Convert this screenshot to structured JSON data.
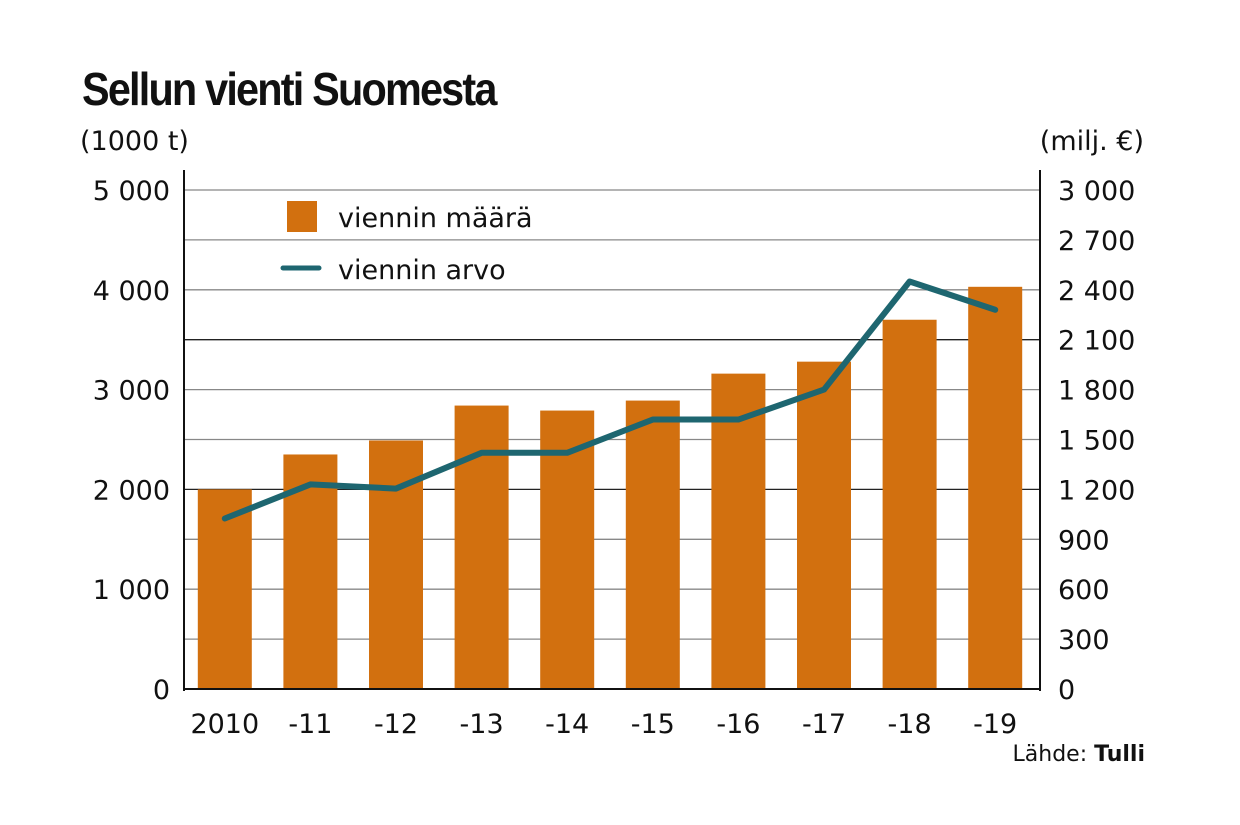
{
  "chart_data": {
    "type": "bar+line",
    "title": "Sellun vienti Suomesta",
    "ylabel_left": "(1000 t)",
    "ylabel_right": "(milj. €)",
    "categories": [
      "2010",
      "-11",
      "-12",
      "-13",
      "-14",
      "-15",
      "-16",
      "-17",
      "-18",
      "-19"
    ],
    "series": [
      {
        "name": "viennin määrä",
        "type": "bar",
        "axis": "left",
        "color": "#d2700f",
        "values": [
          2000,
          2350,
          2490,
          2840,
          2790,
          2890,
          3160,
          3280,
          3700,
          4030
        ]
      },
      {
        "name": "viennin arvo",
        "type": "line",
        "axis": "right",
        "color": "#1e6670",
        "values": [
          1025,
          1230,
          1205,
          1420,
          1420,
          1620,
          1620,
          1800,
          2450,
          2280
        ]
      }
    ],
    "left_axis": {
      "ylim": [
        0,
        5000
      ],
      "ticks": [
        0,
        1000,
        2000,
        3000,
        4000,
        5000
      ],
      "tick_labels": [
        "0",
        "1 000",
        "2 000",
        "3 000",
        "4 000",
        "5 000"
      ]
    },
    "right_axis": {
      "ylim": [
        0,
        3000
      ],
      "ticks": [
        0,
        300,
        600,
        900,
        1200,
        1500,
        1800,
        2100,
        2400,
        2700,
        3000
      ],
      "tick_labels": [
        "0",
        "300",
        "600",
        "900",
        "1 200",
        "1 500",
        "1 800",
        "2 100",
        "2 400",
        "2 700",
        "3 000"
      ]
    },
    "legend_position": "top-left",
    "grid": true,
    "source_label": "Lähde:",
    "source_name": "Tulli"
  }
}
